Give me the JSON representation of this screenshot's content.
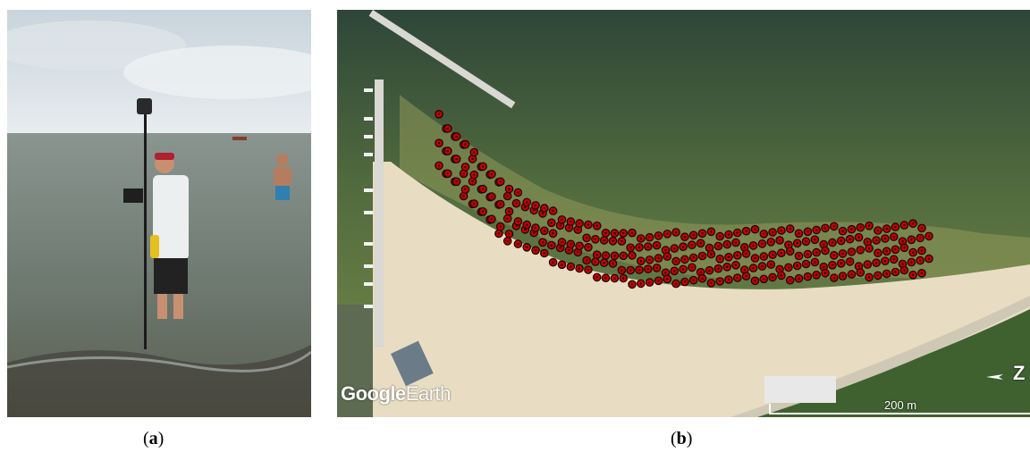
{
  "captions": {
    "a_open": "(",
    "a_letter": "a",
    "a_close": ")",
    "b_open": "(",
    "b_letter": "b",
    "b_close": ")"
  },
  "map": {
    "brand_first": "Google",
    "brand_second": "Earth",
    "scale_label": "200 m",
    "north_label": "Z",
    "marker_color": "#c40000"
  }
}
